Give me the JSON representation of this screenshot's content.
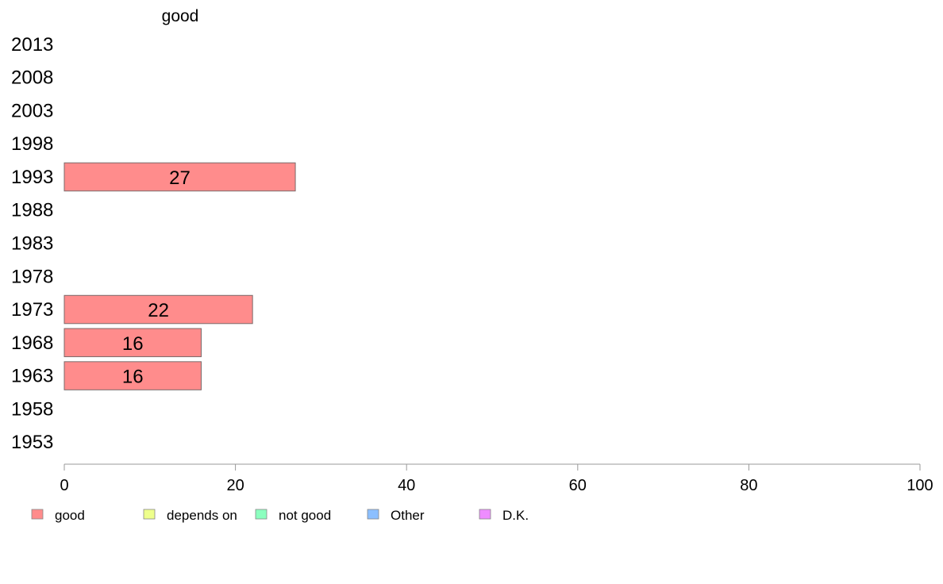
{
  "chart_data": {
    "type": "bar",
    "orientation": "horizontal",
    "title": "good",
    "categories": [
      "1953",
      "1958",
      "1963",
      "1968",
      "1973",
      "1978",
      "1983",
      "1988",
      "1993",
      "1998",
      "2003",
      "2008",
      "2013"
    ],
    "series": [
      {
        "name": "good",
        "color": "#ff8c8c",
        "values": [
          null,
          null,
          16,
          16,
          22,
          null,
          null,
          null,
          27,
          null,
          null,
          null,
          null
        ]
      }
    ],
    "xlim": [
      0,
      100
    ],
    "xticks": [
      0,
      20,
      40,
      60,
      80,
      100
    ],
    "grid": false,
    "legend": {
      "position": "bottom-left",
      "entries": [
        {
          "label": "good",
          "color": "#ff8c8c"
        },
        {
          "label": "depends on",
          "color": "#eeff8c"
        },
        {
          "label": "not good",
          "color": "#8cffbf"
        },
        {
          "label": "Other",
          "color": "#8cbfff"
        },
        {
          "label": "D.K.",
          "color": "#ee8cff"
        }
      ]
    }
  }
}
